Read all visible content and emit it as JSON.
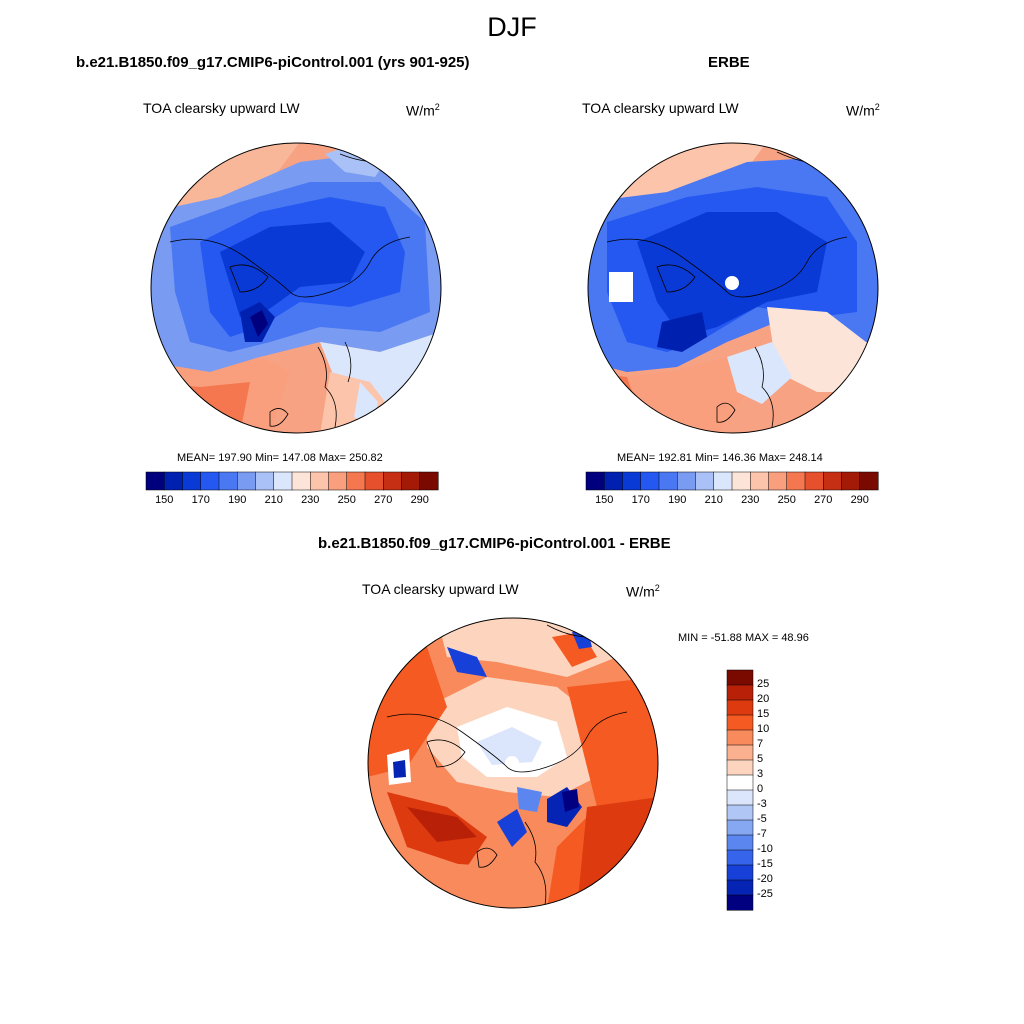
{
  "figure": {
    "season": "DJF"
  },
  "panels": [
    {
      "id": "model",
      "title": "b.e21.B1850.f09_g17.CMIP6-piControl.001 (yrs 901-925)",
      "variable": "TOA clearsky upward LW",
      "units_base": "W/m",
      "units_exp": "2",
      "stats": "MEAN= 197.90  Min= 147.08  Max= 250.82",
      "stat_values": {
        "mean": 197.9,
        "min": 147.08,
        "max": 250.82
      }
    },
    {
      "id": "obs",
      "title": "ERBE",
      "variable": "TOA clearsky upward LW",
      "units_base": "W/m",
      "units_exp": "2",
      "stats": "MEAN= 192.81  Min= 146.36  Max= 248.14",
      "stat_values": {
        "mean": 192.81,
        "min": 146.36,
        "max": 248.14
      }
    },
    {
      "id": "diff",
      "title": "b.e21.B1850.f09_g17.CMIP6-piControl.001 - ERBE",
      "variable": "TOA clearsky upward LW",
      "units_base": "W/m",
      "units_exp": "2",
      "stats": "MIN = -51.88 MAX =  48.96",
      "stat_values": {
        "min": -51.88,
        "max": 48.96
      }
    }
  ],
  "colorbars": {
    "abs": {
      "colors": [
        "#00007f",
        "#0020b0",
        "#0a3ad6",
        "#2458f0",
        "#4a78f2",
        "#7a9bf2",
        "#a9c1f6",
        "#d9e6fb",
        "#fde4d8",
        "#fcc4aa",
        "#fa9f7d",
        "#f47750",
        "#e6502c",
        "#c72f14",
        "#a31a06",
        "#7a0a00"
      ],
      "tick_labels": [
        "150",
        "170",
        "190",
        "210",
        "230",
        "250",
        "270",
        "290"
      ]
    },
    "diff": {
      "colors": [
        "#7a0a00",
        "#b82008",
        "#de3a10",
        "#f55a22",
        "#f88a5c",
        "#fbb090",
        "#fdd5bf",
        "#ffffff",
        "#dbe5fb",
        "#b0c7f5",
        "#86a7f2",
        "#5b86f0",
        "#3664eb",
        "#1740d8",
        "#0524b4",
        "#000080"
      ],
      "tick_labels": [
        "25",
        "20",
        "15",
        "10",
        "7",
        "5",
        "3",
        "0",
        "-3",
        "-5",
        "-7",
        "-10",
        "-15",
        "-20",
        "-25"
      ]
    }
  }
}
